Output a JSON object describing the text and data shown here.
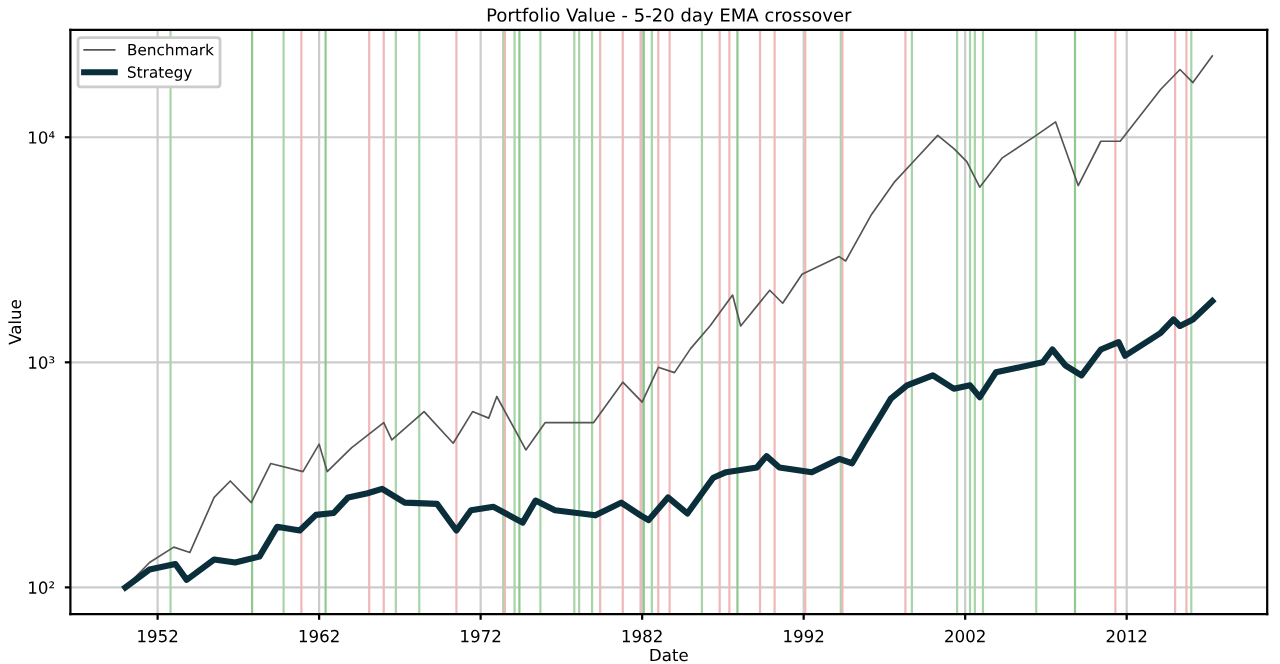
{
  "chart_data": {
    "type": "line",
    "title": "Portfolio Value - 5-20 day EMA crossover",
    "xlabel": "Date",
    "ylabel": "Value",
    "log": "y",
    "grid": true,
    "legend": "top left",
    "xlim": [
      1946.6,
      2020.7
    ],
    "xticks": [
      1952,
      1962,
      1972,
      1982,
      1992,
      2002,
      2012
    ],
    "ylim": [
      76,
      30000
    ],
    "yticks": [
      {
        "value": 100,
        "label": "10²"
      },
      {
        "value": 1000,
        "label": "10³"
      },
      {
        "value": 10000,
        "label": "10⁴"
      }
    ],
    "series": [
      {
        "name": "Benchmark",
        "color": "#555555",
        "x": [
          1950.0,
          1951.5,
          1953.0,
          1954.0,
          1955.5,
          1956.5,
          1957.8,
          1959.0,
          1961.0,
          1962.0,
          1962.5,
          1964.0,
          1966.0,
          1966.5,
          1968.5,
          1970.3,
          1971.5,
          1972.5,
          1973.0,
          1974.8,
          1976.0,
          1979.0,
          1980.8,
          1982.0,
          1983.0,
          1984.0,
          1985.0,
          1986.2,
          1987.6,
          1988.1,
          1989.9,
          1990.7,
          1991.9,
          1994.2,
          1994.6,
          1996.2,
          1997.6,
          1998.8,
          2000.3,
          2001.3,
          2002.1,
          2002.9,
          2004.3,
          2006.4,
          2007.6,
          2009.0,
          2010.4,
          2011.6,
          2014.1,
          2015.3,
          2016.1,
          2017.3
        ],
        "values": [
          100,
          129,
          151,
          143,
          251,
          297,
          238,
          355,
          327,
          433,
          327,
          417,
          540,
          452,
          604,
          437,
          604,
          565,
          705,
          408,
          540,
          540,
          816,
          666,
          950,
          900,
          1150,
          1450,
          1990,
          1450,
          2090,
          1830,
          2460,
          2950,
          2820,
          4540,
          6300,
          7800,
          10200,
          8900,
          7800,
          6000,
          8100,
          10200,
          11700,
          6100,
          9600,
          9600,
          16300,
          20000,
          17500,
          23000
        ]
      },
      {
        "name": "Strategy",
        "color": "#0b2e3b",
        "x": [
          1950.0,
          1951.5,
          1953.1,
          1953.8,
          1955.5,
          1956.8,
          1958.3,
          1959.4,
          1960.8,
          1961.8,
          1962.9,
          1963.8,
          1965.0,
          1965.9,
          1967.3,
          1969.3,
          1970.5,
          1971.4,
          1972.8,
          1974.6,
          1975.4,
          1976.6,
          1979.1,
          1980.7,
          1981.9,
          1982.4,
          1983.6,
          1984.8,
          1986.4,
          1987.2,
          1989.1,
          1989.7,
          1990.5,
          1992.5,
          1994.2,
          1995.0,
          1995.8,
          1997.4,
          1998.4,
          2000.0,
          2001.3,
          2002.3,
          2002.9,
          2003.9,
          2006.8,
          2007.4,
          2008.2,
          2009.2,
          2010.4,
          2011.5,
          2011.9,
          2014.1,
          2014.9,
          2015.3,
          2016.1,
          2017.3
        ],
        "values": [
          100,
          120,
          127,
          108,
          133,
          129,
          137,
          186,
          179,
          210,
          214,
          251,
          262,
          274,
          238,
          235,
          179,
          220,
          228,
          194,
          243,
          220,
          209,
          238,
          209,
          199,
          251,
          213,
          307,
          325,
          341,
          383,
          341,
          325,
          372,
          356,
          446,
          690,
          790,
          875,
          763,
          790,
          700,
          903,
          1000,
          1140,
          970,
          875,
          1140,
          1230,
          1070,
          1350,
          1550,
          1450,
          1550,
          1870
        ]
      }
    ],
    "ref_lines": [
      {
        "axis": "x",
        "value": 1952.8,
        "color": "#a8d5a8"
      },
      {
        "axis": "x",
        "value": 1957.85,
        "color": "#8fc98f"
      },
      {
        "axis": "x",
        "value": 1959.8,
        "color": "#a8d5a8"
      },
      {
        "axis": "x",
        "value": 1962.4,
        "color": "#8fc98f"
      },
      {
        "axis": "x",
        "value": 1966.75,
        "color": "#a8d5a8"
      },
      {
        "axis": "x",
        "value": 1968.2,
        "color": "#a8d5a8"
      },
      {
        "axis": "x",
        "value": 1973.4,
        "color": "#a8d5a8"
      },
      {
        "axis": "x",
        "value": 1974.1,
        "color": "#a8d5a8"
      },
      {
        "axis": "x",
        "value": 1974.4,
        "color": "#8fc98f"
      },
      {
        "axis": "x",
        "value": 1975.7,
        "color": "#a8d5a8"
      },
      {
        "axis": "x",
        "value": 1977.8,
        "color": "#a8d5a8"
      },
      {
        "axis": "x",
        "value": 1978.1,
        "color": "#a8d5a8"
      },
      {
        "axis": "x",
        "value": 1978.9,
        "color": "#a8d5a8"
      },
      {
        "axis": "x",
        "value": 1982.1,
        "color": "#8fc98f"
      },
      {
        "axis": "x",
        "value": 1982.6,
        "color": "#a8d5a8"
      },
      {
        "axis": "x",
        "value": 1985.7,
        "color": "#a8d5a8"
      },
      {
        "axis": "x",
        "value": 1987.9,
        "color": "#8fc98f"
      },
      {
        "axis": "x",
        "value": 1994.3,
        "color": "#a8d5a8"
      },
      {
        "axis": "x",
        "value": 1998.7,
        "color": "#a8d5a8"
      },
      {
        "axis": "x",
        "value": 2001.5,
        "color": "#a8d5a8"
      },
      {
        "axis": "x",
        "value": 2002.3,
        "color": "#a8d5a8"
      },
      {
        "axis": "x",
        "value": 2002.6,
        "color": "#a8d5a8"
      },
      {
        "axis": "x",
        "value": 2003.1,
        "color": "#a8d5a8"
      },
      {
        "axis": "x",
        "value": 2006.4,
        "color": "#a8d5a8"
      },
      {
        "axis": "x",
        "value": 2008.8,
        "color": "#8fc98f"
      },
      {
        "axis": "x",
        "value": 2016.0,
        "color": "#a8d5a8"
      },
      {
        "axis": "x",
        "value": 1960.9,
        "color": "#f0b8b8"
      },
      {
        "axis": "x",
        "value": 1965.1,
        "color": "#f0b8b8"
      },
      {
        "axis": "x",
        "value": 1966.0,
        "color": "#f0b8b8"
      },
      {
        "axis": "x",
        "value": 1970.5,
        "color": "#f0b8b8"
      },
      {
        "axis": "x",
        "value": 1973.5,
        "color": "#f0b8b8"
      },
      {
        "axis": "x",
        "value": 1979.4,
        "color": "#f0b8b8"
      },
      {
        "axis": "x",
        "value": 1980.8,
        "color": "#f0b8b8"
      },
      {
        "axis": "x",
        "value": 1981.9,
        "color": "#f0b8b8"
      },
      {
        "axis": "x",
        "value": 1983.0,
        "color": "#f0b8b8"
      },
      {
        "axis": "x",
        "value": 1983.7,
        "color": "#f0b8b8"
      },
      {
        "axis": "x",
        "value": 1986.8,
        "color": "#f0b8b8"
      },
      {
        "axis": "x",
        "value": 1987.4,
        "color": "#f0b8b8"
      },
      {
        "axis": "x",
        "value": 1989.3,
        "color": "#f0b8b8"
      },
      {
        "axis": "x",
        "value": 1990.2,
        "color": "#f0b8b8"
      },
      {
        "axis": "x",
        "value": 1992.1,
        "color": "#f0b8b8"
      },
      {
        "axis": "x",
        "value": 1994.4,
        "color": "#f0b8b8"
      },
      {
        "axis": "x",
        "value": 1998.3,
        "color": "#f0b8b8"
      },
      {
        "axis": "x",
        "value": 2011.3,
        "color": "#f0b8b8"
      },
      {
        "axis": "x",
        "value": 2015.0,
        "color": "#f0b8b8"
      },
      {
        "axis": "x",
        "value": 2015.7,
        "color": "#f0b8b8"
      }
    ]
  }
}
